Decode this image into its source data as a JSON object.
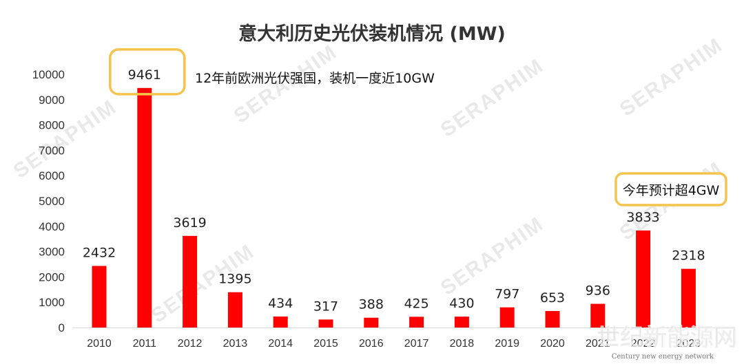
{
  "chart_data": {
    "type": "bar",
    "title": "意大利历史光伏装机情况 (MW)",
    "categories": [
      "2010",
      "2011",
      "2012",
      "2013",
      "2014",
      "2015",
      "2016",
      "2017",
      "2018",
      "2019",
      "2020",
      "2021",
      "2022",
      "2023"
    ],
    "values": [
      2432,
      9461,
      3619,
      1395,
      434,
      317,
      388,
      425,
      430,
      797,
      653,
      936,
      3833,
      2318
    ],
    "ylim": [
      0,
      10000
    ],
    "yticks": [
      0,
      1000,
      2000,
      3000,
      4000,
      5000,
      6000,
      7000,
      8000,
      9000,
      10000
    ],
    "xlabel": "",
    "ylabel": "",
    "grid": false,
    "bar_color": "#ff0000",
    "annotations": [
      {
        "text": "12年前欧洲光伏强国，装机一度近10GW",
        "target_index": 1
      },
      {
        "text": "今年预计超4GW",
        "target_index": 12
      }
    ],
    "highlight_box_color": "#f5c44d"
  },
  "watermark": {
    "text": "SERAPHIM",
    "corner_cn": "世纪新能源网",
    "corner_en": "Century new energy network"
  }
}
